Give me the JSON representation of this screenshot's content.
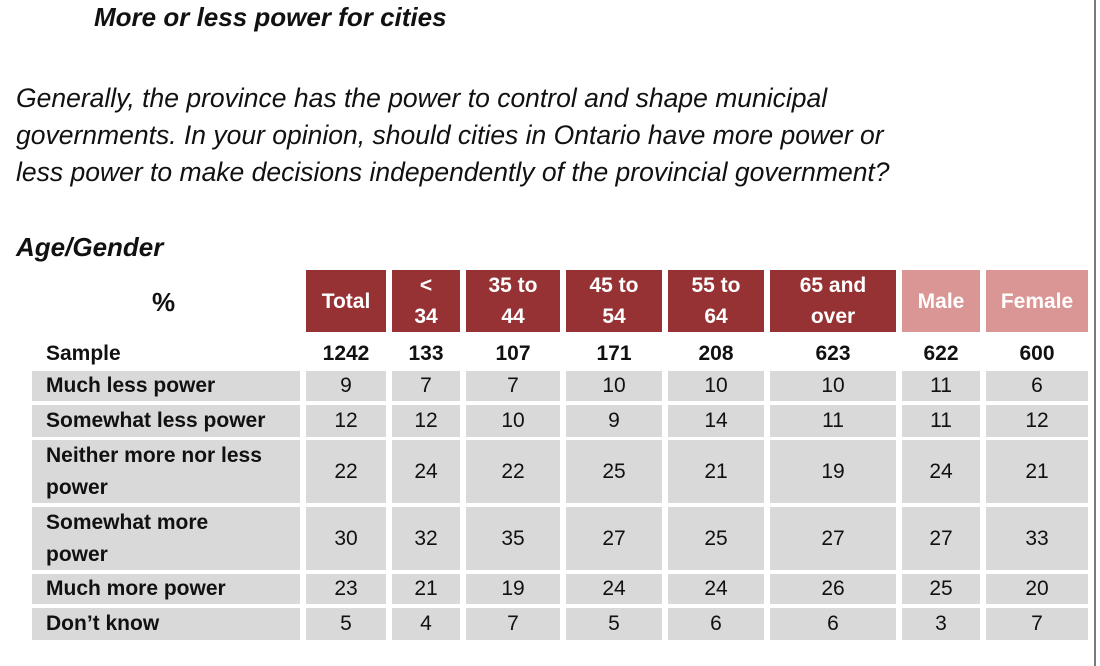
{
  "title": "More or less power for cities",
  "question_lines": [
    "Generally, the province has the power to control and shape municipal",
    "governments. In your opinion, should cities in Ontario have more power or",
    "less power to make decisions independently of the provincial government?"
  ],
  "section_title": "Age/Gender",
  "corner_label": "%",
  "colors": {
    "header_dark": "#973234",
    "header_light": "#da9695",
    "row_shade": "#d9d9d9"
  },
  "table": {
    "headers": [
      {
        "lines": [
          "Total"
        ],
        "style": "dark"
      },
      {
        "lines": [
          "<",
          "34"
        ],
        "style": "dark"
      },
      {
        "lines": [
          "35 to",
          "44"
        ],
        "style": "dark"
      },
      {
        "lines": [
          "45 to",
          "54"
        ],
        "style": "dark"
      },
      {
        "lines": [
          "55 to",
          "64"
        ],
        "style": "dark"
      },
      {
        "lines": [
          "65 and",
          "over"
        ],
        "style": "dark"
      },
      {
        "lines": [
          "Male"
        ],
        "style": "light"
      },
      {
        "lines": [
          "Female"
        ],
        "style": "light"
      }
    ],
    "rows": [
      {
        "label_lines": [
          "Sample"
        ],
        "values": [
          "1242",
          "133",
          "107",
          "171",
          "208",
          "623",
          "622",
          "600"
        ]
      },
      {
        "label_lines": [
          "Much less power"
        ],
        "values": [
          "9",
          "7",
          "7",
          "10",
          "10",
          "10",
          "11",
          "6"
        ]
      },
      {
        "label_lines": [
          "Somewhat less power"
        ],
        "values": [
          "12",
          "12",
          "10",
          "9",
          "14",
          "11",
          "11",
          "12"
        ]
      },
      {
        "label_lines": [
          "Neither more nor less",
          "power"
        ],
        "values": [
          "22",
          "24",
          "22",
          "25",
          "21",
          "19",
          "24",
          "21"
        ]
      },
      {
        "label_lines": [
          "Somewhat more",
          "power"
        ],
        "values": [
          "30",
          "32",
          "35",
          "27",
          "25",
          "27",
          "27",
          "33"
        ]
      },
      {
        "label_lines": [
          "Much more power"
        ],
        "values": [
          "23",
          "21",
          "19",
          "24",
          "24",
          "26",
          "25",
          "20"
        ]
      },
      {
        "label_lines": [
          "Don’t know"
        ],
        "values": [
          "5",
          "4",
          "7",
          "5",
          "6",
          "6",
          "3",
          "7"
        ]
      }
    ]
  }
}
